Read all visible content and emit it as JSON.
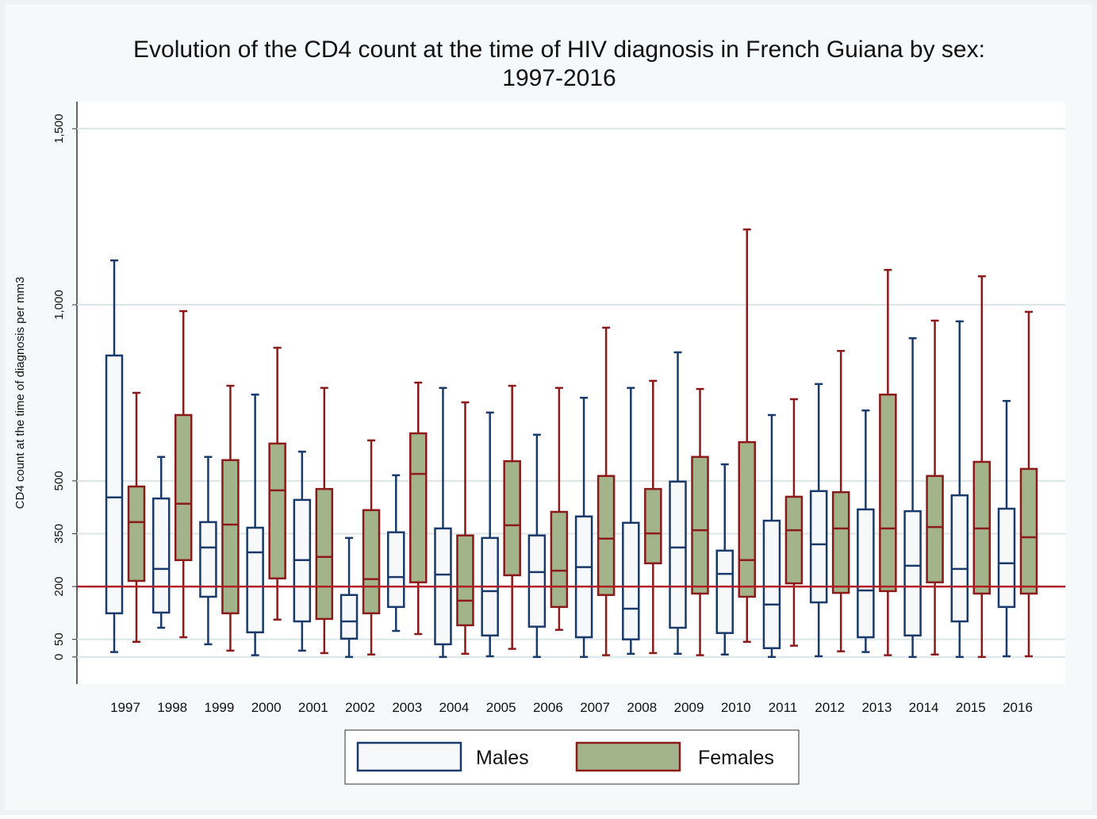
{
  "chart_data": {
    "type": "boxplot",
    "title": [
      "Evolution of the CD4 count at the time of HIV diagnosis in French Guiana by sex:",
      "1997-2016"
    ],
    "y_label": "CD4 count at the time of diagnosis per mm3",
    "categories": [
      "1997",
      "1998",
      "1999",
      "2000",
      "2001",
      "2002",
      "2003",
      "2004",
      "2005",
      "2006",
      "2007",
      "2008",
      "2009",
      "2010",
      "2011",
      "2012",
      "2013",
      "2014",
      "2015",
      "2016"
    ],
    "series": [
      {
        "name": "Males",
        "color": "#1a3a6b",
        "fill": "#f7f8fa",
        "whisker_low": [
          14,
          83,
          36,
          5,
          18,
          0,
          74,
          0,
          2,
          0,
          0,
          9,
          9,
          7,
          0,
          2,
          14,
          0,
          0,
          2
        ],
        "q1": [
          124,
          126,
          171,
          70,
          101,
          52,
          142,
          36,
          61,
          86,
          56,
          50,
          83,
          68,
          25,
          155,
          56,
          61,
          101,
          142
        ],
        "median": [
          453,
          250,
          311,
          297,
          275,
          101,
          227,
          234,
          187,
          241,
          255,
          137,
          311,
          236,
          149,
          320,
          189,
          259,
          250,
          266
        ],
        "q3": [
          856,
          450,
          383,
          367,
          446,
          176,
          354,
          365,
          338,
          345,
          399,
          381,
          498,
          302,
          387,
          471,
          419,
          414,
          459,
          421
        ],
        "whisker_high": [
          1126,
          568,
          568,
          745,
          583,
          338,
          516,
          764,
          694,
          631,
          736,
          764,
          865,
          547,
          687,
          775,
          700,
          905,
          953,
          727
        ]
      },
      {
        "name": "Females",
        "color": "#8b1a1a",
        "fill": "#a3b38a",
        "whisker_low": [
          43,
          56,
          18,
          106,
          11,
          7,
          65,
          9,
          23,
          77,
          5,
          11,
          5,
          43,
          32,
          16,
          5,
          7,
          0,
          2
        ],
        "q1": [
          216,
          275,
          124,
          223,
          108,
          124,
          212,
          90,
          232,
          142,
          176,
          266,
          180,
          171,
          209,
          182,
          187,
          212,
          180,
          180
        ],
        "median": [
          383,
          435,
          376,
          473,
          284,
          221,
          520,
          160,
          374,
          245,
          336,
          351,
          360,
          275,
          360,
          365,
          365,
          369,
          365,
          340
        ],
        "q3": [
          484,
          687,
          559,
          606,
          477,
          417,
          635,
          345,
          556,
          412,
          514,
          477,
          568,
          610,
          455,
          468,
          745,
          514,
          554,
          534
        ],
        "whisker_high": [
          750,
          982,
          770,
          878,
          764,
          615,
          779,
          723,
          770,
          764,
          935,
          784,
          761,
          1214,
          732,
          869,
          1099,
          955,
          1081,
          980
        ]
      }
    ],
    "reference_line": 200,
    "reference_color": "#b01e23",
    "ylim": [
      -77,
      1577
    ],
    "yticks": [
      0,
      50,
      200,
      350,
      500,
      {
        "value": 1000,
        "label": "1,000"
      },
      {
        "value": 1500,
        "label": "1,500"
      }
    ],
    "grid": true
  }
}
